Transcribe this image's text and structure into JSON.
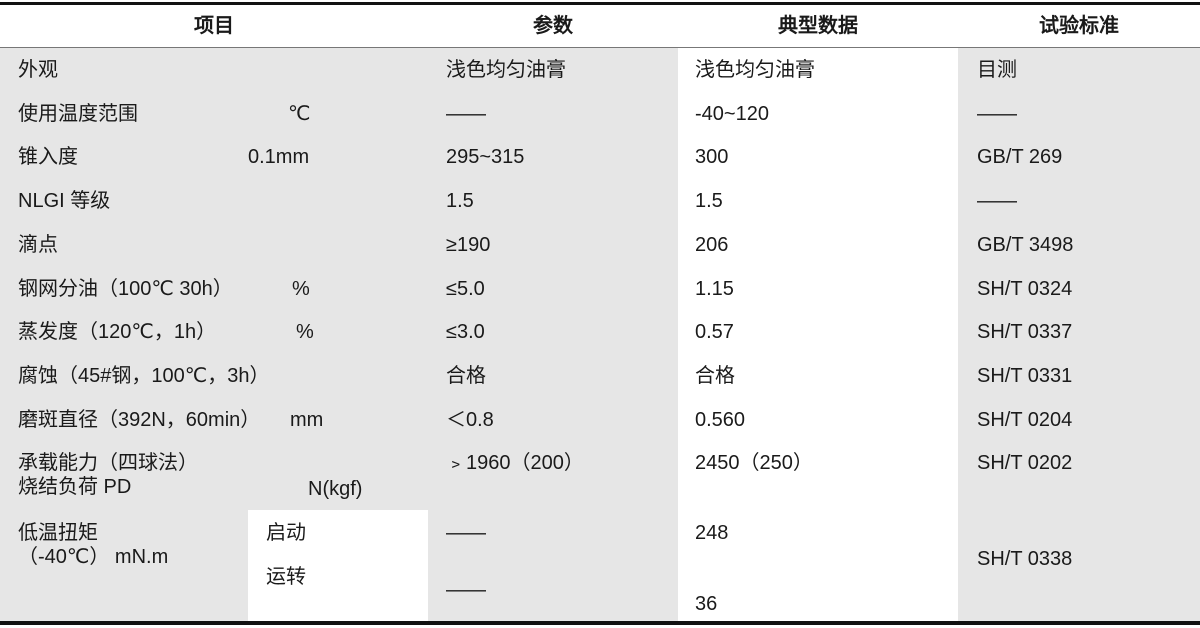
{
  "colors": {
    "shaded": "#e6e6e6",
    "plain": "#ffffff",
    "rule": "#111111"
  },
  "headers": [
    "项目",
    "参数",
    "典型数据",
    "试验标准"
  ],
  "rows": [
    {
      "item": "外观",
      "unit": "",
      "param": "浅色均匀油膏",
      "typical": "浅色均匀油膏",
      "standard": "目测"
    },
    {
      "item": "使用温度范围",
      "unit": "℃",
      "param": "——",
      "typical": "-40~120",
      "standard": "——"
    },
    {
      "item": "锥入度",
      "unit": "0.1mm",
      "param": "295~315",
      "typical": "300",
      "standard": "GB/T 269"
    },
    {
      "item": "NLGI 等级",
      "unit": "",
      "param": "1.5",
      "typical": "1.5",
      "standard": "——"
    },
    {
      "item": "滴点",
      "unit": "",
      "param": "≥190",
      "typical": "206",
      "standard": "GB/T 3498"
    },
    {
      "item": "钢网分油（100℃ 30h）",
      "unit": "%",
      "param": "≤5.0",
      "typical": "1.15",
      "standard": "SH/T 0324"
    },
    {
      "item": "蒸发度（120℃，1h）",
      "unit": "%",
      "param": "≤3.0",
      "typical": "0.57",
      "standard": "SH/T 0337"
    },
    {
      "item": "腐蚀（45#钢，100℃，3h）",
      "unit": "",
      "param": "合格",
      "typical": "合格",
      "standard": "SH/T 0331"
    },
    {
      "item": "磨斑直径（392N，60min）",
      "unit": "mm",
      "param": "＜0.8",
      "typical": "0.560",
      "standard": "SH/T 0204"
    },
    {
      "item": "承载能力（四球法）\n烧结负荷 PD",
      "unit": "N(kgf)",
      "param": "﹥1960（200）",
      "typical": "2450（250）",
      "standard": "SH/T 0202"
    }
  ],
  "torque": {
    "item": "低温扭矩\n（-40℃） mN.m",
    "sub": [
      "启动",
      "运转"
    ],
    "param": [
      "——",
      "——"
    ],
    "typical": [
      "248",
      "36"
    ],
    "standard": "SH/T 0338"
  }
}
